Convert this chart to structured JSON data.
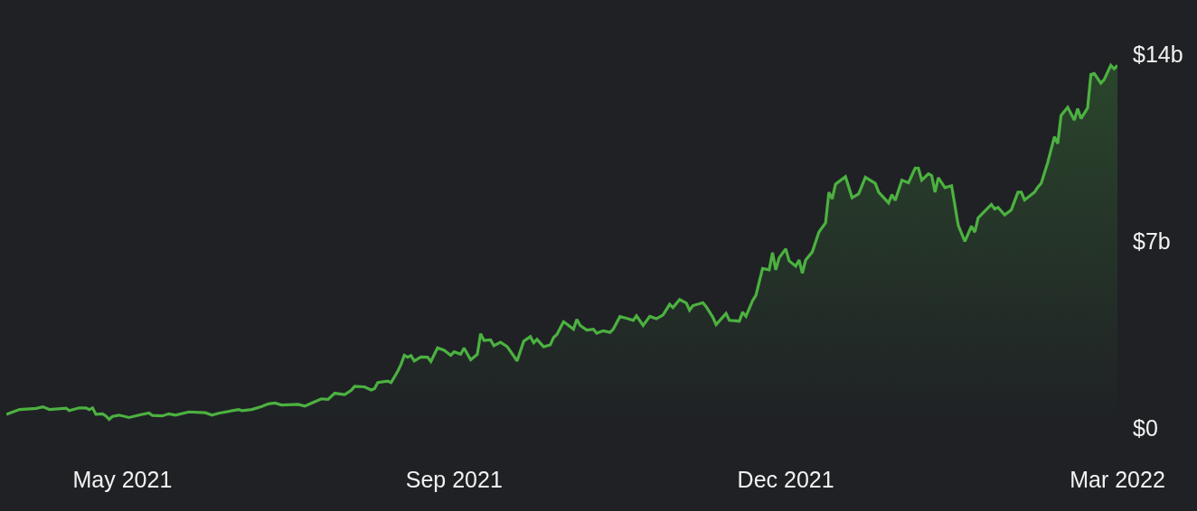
{
  "chart_data": {
    "type": "area",
    "color": "#4cb140",
    "x": [
      "2021-04-21",
      "2021-04-25",
      "2021-04-30",
      "2021-05-02",
      "2021-05-04",
      "2021-05-09",
      "2021-05-10",
      "2021-05-13",
      "2021-05-15",
      "2021-05-16",
      "2021-05-17",
      "2021-05-18",
      "2021-05-20",
      "2021-05-21",
      "2021-05-22",
      "2021-05-23",
      "2021-05-25",
      "2021-05-28",
      "2021-05-31",
      "2021-06-03",
      "2021-06-04",
      "2021-06-07",
      "2021-06-09",
      "2021-06-11",
      "2021-06-15",
      "2021-06-20",
      "2021-06-22",
      "2021-06-24",
      "2021-06-30",
      "2021-07-01",
      "2021-07-04",
      "2021-07-07",
      "2021-07-09",
      "2021-07-11",
      "2021-07-13",
      "2021-07-18",
      "2021-07-20",
      "2021-07-23",
      "2021-07-25",
      "2021-07-27",
      "2021-07-29",
      "2021-08-01",
      "2021-08-03",
      "2021-08-04",
      "2021-08-07",
      "2021-08-09",
      "2021-08-10",
      "2021-08-11",
      "2021-08-14",
      "2021-08-15",
      "2021-08-17",
      "2021-08-18",
      "2021-08-19",
      "2021-08-20",
      "2021-08-21",
      "2021-08-22",
      "2021-08-24",
      "2021-08-26",
      "2021-08-27",
      "2021-08-29",
      "2021-08-31",
      "2021-09-02",
      "2021-09-03",
      "2021-09-05",
      "2021-09-06",
      "2021-09-08",
      "2021-09-10",
      "2021-09-11",
      "2021-09-12",
      "2021-09-14",
      "2021-09-15",
      "2021-09-17",
      "2021-09-19",
      "2021-09-22",
      "2021-09-24",
      "2021-09-26",
      "2021-09-27",
      "2021-09-28",
      "2021-09-30",
      "2021-10-02",
      "2021-10-03",
      "2021-10-04",
      "2021-10-06",
      "2021-10-07",
      "2021-10-09",
      "2021-10-10",
      "2021-10-11",
      "2021-10-13",
      "2021-10-15",
      "2021-10-16",
      "2021-10-18",
      "2021-10-20",
      "2021-10-21",
      "2021-10-23",
      "2021-10-25",
      "2021-10-27",
      "2021-10-28",
      "2021-10-30",
      "2021-11-01",
      "2021-11-03",
      "2021-11-05",
      "2021-11-07",
      "2021-11-08",
      "2021-11-10",
      "2021-11-12",
      "2021-11-13",
      "2021-11-14",
      "2021-11-17",
      "2021-11-18",
      "2021-11-20",
      "2021-11-21",
      "2021-11-24",
      "2021-11-25",
      "2021-11-28",
      "2021-11-29",
      "2021-11-30",
      "2021-12-02",
      "2021-12-03",
      "2021-12-05",
      "2021-12-07",
      "2021-12-08",
      "2021-12-09",
      "2021-12-10",
      "2021-12-12",
      "2021-12-13",
      "2021-12-15",
      "2021-12-16",
      "2021-12-17",
      "2021-12-18",
      "2021-12-20",
      "2021-12-22",
      "2021-12-24",
      "2021-12-25",
      "2021-12-26",
      "2021-12-27",
      "2021-12-30",
      "2022-01-01",
      "2022-01-03",
      "2022-01-05",
      "2022-01-08",
      "2022-01-09",
      "2022-01-12",
      "2022-01-13",
      "2022-01-14",
      "2022-01-16",
      "2022-01-18",
      "2022-01-20",
      "2022-01-21",
      "2022-01-22",
      "2022-01-24",
      "2022-01-25",
      "2022-01-26",
      "2022-01-27",
      "2022-01-29",
      "2022-01-31",
      "2022-02-02",
      "2022-02-04",
      "2022-02-06",
      "2022-02-07",
      "2022-02-08",
      "2022-02-12",
      "2022-02-13",
      "2022-02-14",
      "2022-02-16",
      "2022-02-18",
      "2022-02-20",
      "2022-02-21",
      "2022-02-22",
      "2022-02-25",
      "2022-02-26",
      "2022-02-27",
      "2022-03-01",
      "2022-03-03",
      "2022-03-04",
      "2022-03-05",
      "2022-03-07",
      "2022-03-09",
      "2022-03-10",
      "2022-03-11",
      "2022-03-13",
      "2022-03-14",
      "2022-03-15",
      "2022-03-17",
      "2022-03-18",
      "2022-03-20",
      "2022-03-21",
      "2022-03-22"
    ],
    "values": [
      0.51,
      0.69,
      0.73,
      0.79,
      0.69,
      0.74,
      0.65,
      0.75,
      0.75,
      0.69,
      0.75,
      0.51,
      0.53,
      0.45,
      0.32,
      0.43,
      0.48,
      0.39,
      0.48,
      0.56,
      0.47,
      0.45,
      0.53,
      0.48,
      0.6,
      0.57,
      0.48,
      0.55,
      0.69,
      0.65,
      0.69,
      0.8,
      0.9,
      0.93,
      0.86,
      0.88,
      0.82,
      0.98,
      1.09,
      1.07,
      1.3,
      1.25,
      1.41,
      1.56,
      1.54,
      1.42,
      1.47,
      1.7,
      1.75,
      1.7,
      2.12,
      2.38,
      2.72,
      2.65,
      2.71,
      2.51,
      2.66,
      2.65,
      2.49,
      3.0,
      2.91,
      2.72,
      2.85,
      2.76,
      2.99,
      2.55,
      2.76,
      3.53,
      3.28,
      3.3,
      3.08,
      3.21,
      3.05,
      2.51,
      3.25,
      3.42,
      3.19,
      3.32,
      3.04,
      3.11,
      3.39,
      3.5,
      3.98,
      3.89,
      3.7,
      4.07,
      3.84,
      3.67,
      3.7,
      3.55,
      3.64,
      3.58,
      3.7,
      4.17,
      4.11,
      4.03,
      4.2,
      3.84,
      4.18,
      4.09,
      4.23,
      4.63,
      4.51,
      4.81,
      4.68,
      4.41,
      4.58,
      4.69,
      4.54,
      4.15,
      3.87,
      4.29,
      4.03,
      4.0,
      4.34,
      4.18,
      4.77,
      4.97,
      5.97,
      5.92,
      6.57,
      5.92,
      6.37,
      6.71,
      6.26,
      6.06,
      6.29,
      5.8,
      6.29,
      6.59,
      7.34,
      7.68,
      8.83,
      8.58,
      9.13,
      9.41,
      8.62,
      8.77,
      9.39,
      9.16,
      8.83,
      8.43,
      8.74,
      8.52,
      9.28,
      9.18,
      9.73,
      9.73,
      9.28,
      9.52,
      9.45,
      8.83,
      9.37,
      9.0,
      9.07,
      7.59,
      6.99,
      7.56,
      7.33,
      7.87,
      8.37,
      8.2,
      8.26,
      7.98,
      8.17,
      8.83,
      8.83,
      8.54,
      8.83,
      9.02,
      9.16,
      9.95,
      10.91,
      10.65,
      11.7,
      12.01,
      11.53,
      11.96,
      11.59,
      11.98,
      13.24,
      13.28,
      12.91,
      13.05,
      13.58,
      13.45,
      13.58
    ],
    "xlim": [
      "2021-04-21",
      "2022-03-22"
    ],
    "xticks": [
      {
        "value": "2021-05-26",
        "label": "May 2021"
      },
      {
        "value": "2021-09-03",
        "label": "Sep 2021"
      },
      {
        "value": "2021-12-12",
        "label": "Dec 2021"
      },
      {
        "value": "2022-03-22",
        "label": "Mar 2022"
      }
    ],
    "ylim": [
      0,
      14
    ],
    "yticks": [
      {
        "value": 0,
        "label": "$0"
      },
      {
        "value": 7,
        "label": "$7b"
      },
      {
        "value": 14,
        "label": "$14b"
      }
    ]
  }
}
